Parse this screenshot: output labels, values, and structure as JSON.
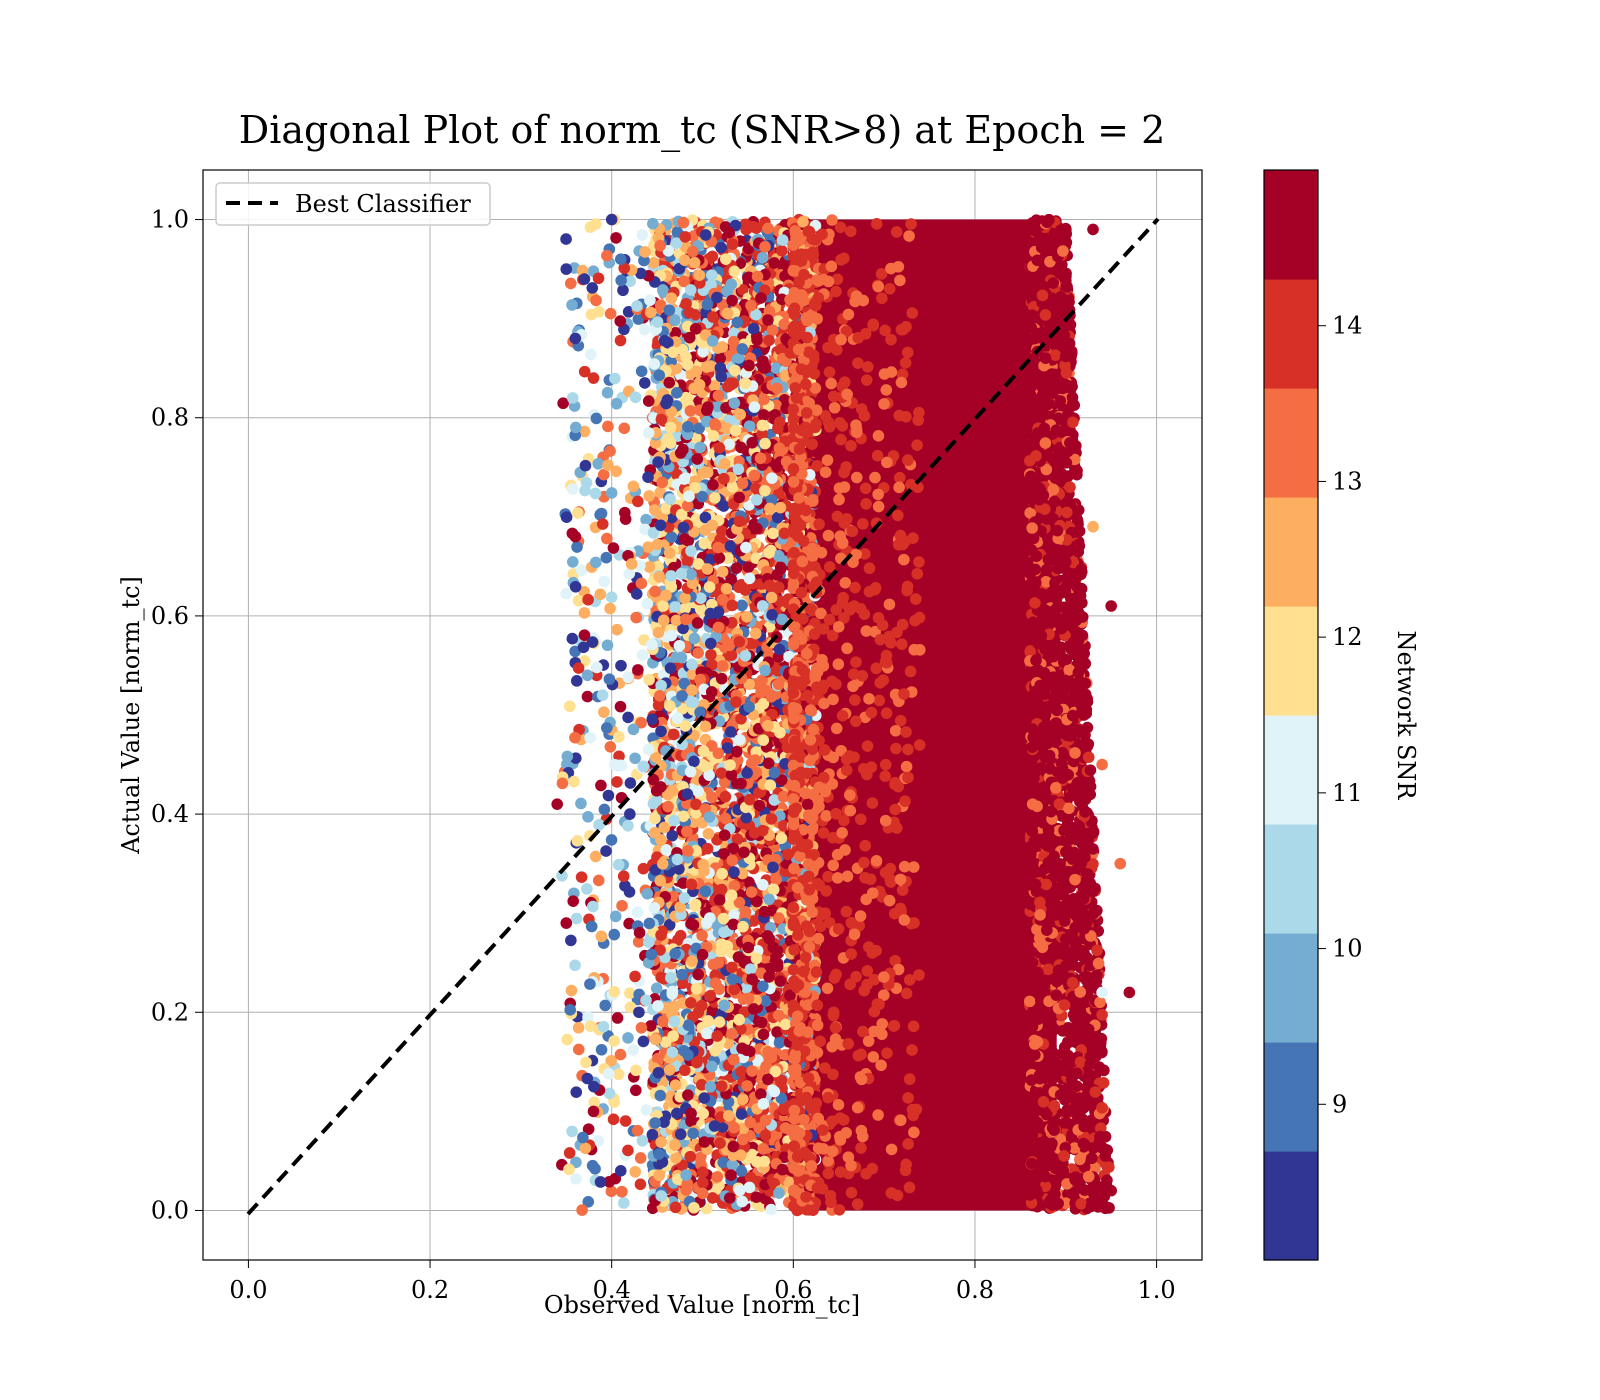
{
  "chart_data": {
    "type": "scatter",
    "title": "Diagonal Plot of norm_tc (SNR>8) at Epoch = 2",
    "xlabel": "Observed Value [norm_tc]",
    "ylabel": "Actual Value [norm_tc]",
    "xlim": [
      -0.05,
      1.05
    ],
    "ylim": [
      -0.05,
      1.05
    ],
    "x_ticks": [
      0.0,
      0.2,
      0.4,
      0.6,
      0.8,
      1.0
    ],
    "y_ticks": [
      0.0,
      0.2,
      0.4,
      0.6,
      0.8,
      1.0
    ],
    "x_tick_labels": [
      "0.0",
      "0.2",
      "0.4",
      "0.6",
      "0.8",
      "1.0"
    ],
    "y_tick_labels": [
      "0.0",
      "0.2",
      "0.4",
      "0.6",
      "0.8",
      "1.0"
    ],
    "grid": true,
    "legend": {
      "position": "top-left",
      "entries": [
        "Best Classifier"
      ]
    },
    "diagonal": {
      "name": "Best Classifier",
      "x": [
        0.0,
        1.0
      ],
      "y": [
        0.0,
        1.0
      ],
      "style": "dashed",
      "color": "#000000"
    },
    "colorbar": {
      "label": "Network SNR",
      "range": [
        8,
        15
      ],
      "ticks": [
        9,
        10,
        11,
        12,
        13,
        14
      ],
      "tick_labels": [
        "9",
        "10",
        "11",
        "12",
        "13",
        "14"
      ],
      "colors": [
        "#313695",
        "#4575b4",
        "#74add1",
        "#abd9e9",
        "#e0f3f8",
        "#fee090",
        "#fdae61",
        "#f46d43",
        "#d73027",
        "#a50026"
      ]
    },
    "points": [
      {
        "x": 0.34,
        "y": 0.41,
        "snr": 15
      },
      {
        "x": 0.35,
        "y": 0.95,
        "snr": 8.5
      },
      {
        "x": 0.36,
        "y": 0.88,
        "snr": 8.2
      },
      {
        "x": 0.37,
        "y": 0.94,
        "snr": 8.3
      },
      {
        "x": 0.36,
        "y": 0.68,
        "snr": 14.6
      },
      {
        "x": 0.35,
        "y": 0.29,
        "snr": 14.8
      },
      {
        "x": 0.38,
        "y": 0.84,
        "snr": 14.2
      },
      {
        "x": 0.39,
        "y": 0.52,
        "snr": 10.2
      },
      {
        "x": 0.4,
        "y": 1.0,
        "snr": 8.4
      },
      {
        "x": 0.41,
        "y": 0.96,
        "snr": 9.1
      },
      {
        "x": 0.42,
        "y": 0.4,
        "snr": 8.3
      },
      {
        "x": 0.43,
        "y": 0.2,
        "snr": 8.6
      },
      {
        "x": 0.38,
        "y": 0.1,
        "snr": 14.9
      },
      {
        "x": 0.41,
        "y": 0.04,
        "snr": 8.2
      },
      {
        "x": 0.44,
        "y": 0.74,
        "snr": 8.1
      },
      {
        "x": 0.95,
        "y": 0.61,
        "snr": 15
      },
      {
        "x": 0.96,
        "y": 0.35,
        "snr": 13.4
      },
      {
        "x": 0.97,
        "y": 0.22,
        "snr": 14.9
      },
      {
        "x": 0.95,
        "y": 0.02,
        "snr": 14.9
      },
      {
        "x": 0.93,
        "y": 0.99,
        "snr": 14.9
      },
      {
        "x": 0.94,
        "y": 0.22,
        "snr": 10.8
      },
      {
        "x": 0.92,
        "y": 0.5,
        "snr": 15
      },
      {
        "x": 0.93,
        "y": 0.69,
        "snr": 12.8
      },
      {
        "x": 0.94,
        "y": 0.45,
        "snr": 13.3
      }
    ]
  }
}
